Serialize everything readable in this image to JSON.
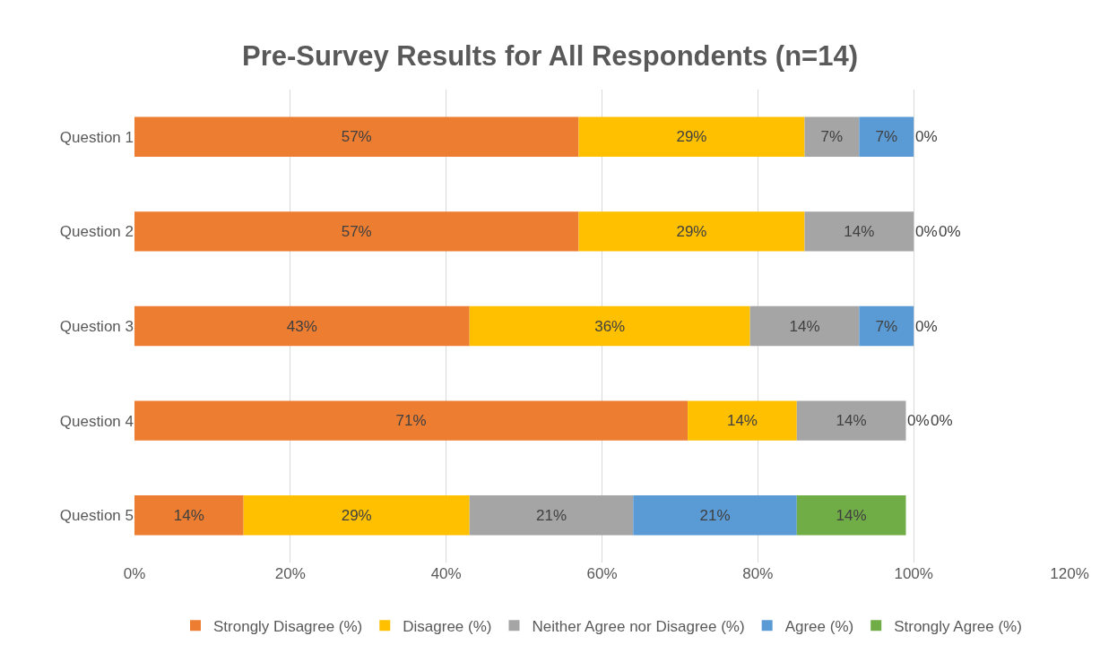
{
  "chart_data": {
    "type": "bar",
    "orientation": "horizontal",
    "stacked": true,
    "title": "Pre-Survey Results for All Respondents (n=14)",
    "categories": [
      "Question 1",
      "Question 2",
      "Question 3",
      "Question 4",
      "Question 5"
    ],
    "series": [
      {
        "name": "Strongly Disagree (%)",
        "color": "#ed7d31",
        "values": [
          57,
          57,
          43,
          71,
          14
        ],
        "value_labels": [
          "57%",
          "57%",
          "43%",
          "71%",
          "14%"
        ]
      },
      {
        "name": "Disagree (%)",
        "color": "#ffc000",
        "values": [
          29,
          29,
          36,
          14,
          29
        ],
        "value_labels": [
          "29%",
          "29%",
          "36%",
          "14%",
          "29%"
        ]
      },
      {
        "name": "Neither Agree nor Disagree (%)",
        "color": "#a5a5a5",
        "values": [
          7,
          14,
          14,
          14,
          21
        ],
        "value_labels": [
          "7%",
          "14%",
          "14%",
          "14%",
          "21%"
        ]
      },
      {
        "name": "Agree (%)",
        "color": "#5b9bd5",
        "values": [
          7,
          0,
          7,
          0,
          21
        ],
        "value_labels": [
          "7%",
          "0%",
          "7%",
          "0%",
          "21%"
        ]
      },
      {
        "name": "Strongly Agree (%)",
        "color": "#70ad47",
        "values": [
          0,
          0,
          0,
          0,
          14
        ],
        "value_labels": [
          "0%",
          "0%",
          "0%",
          "0%",
          "14%"
        ]
      }
    ],
    "xlim": [
      0,
      120
    ],
    "xticks": [
      {
        "value": 0,
        "label": "0%"
      },
      {
        "value": 20,
        "label": "20%"
      },
      {
        "value": 40,
        "label": "40%"
      },
      {
        "value": 60,
        "label": "60%"
      },
      {
        "value": 80,
        "label": "80%"
      },
      {
        "value": 100,
        "label": "100%"
      },
      {
        "value": 120,
        "label": "120%"
      }
    ],
    "grid": "x",
    "legend": "bottom"
  }
}
